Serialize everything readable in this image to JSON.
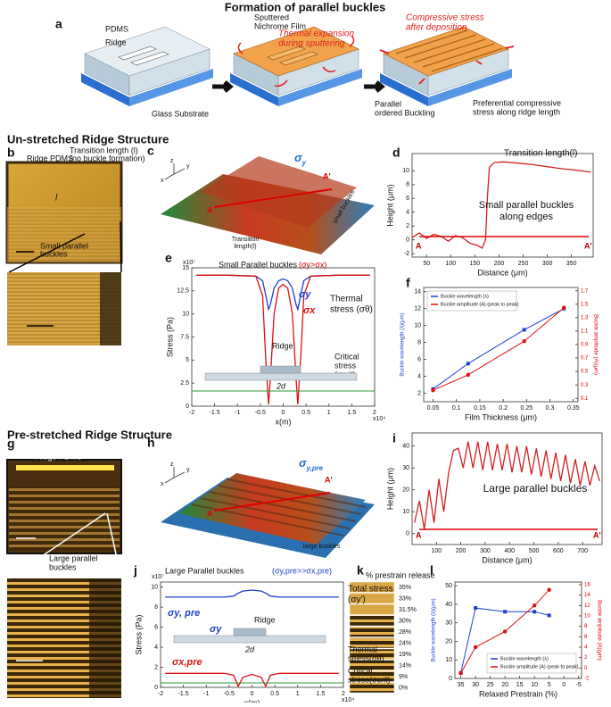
{
  "title": "Formation of parallel buckles",
  "panel_labels": [
    "a",
    "b",
    "c",
    "d",
    "e",
    "f",
    "g",
    "h",
    "i",
    "j",
    "k",
    "l"
  ],
  "sections": [
    "Un-stretched Ridge Structure",
    "Pre-stretched Ridge Structure"
  ],
  "a": {
    "pdms": "PDMS",
    "ridge": "Ridge",
    "glass": "Glass Substrate",
    "film": [
      "Sputtered",
      "Nichrome Film"
    ],
    "thermal": [
      "Thermal expansion",
      "during sputtering"
    ],
    "compressive": [
      "Compressive stress",
      "after deposition"
    ],
    "parallel": [
      "Parallel",
      "ordered Buckling"
    ],
    "preferential": [
      "Preferential compressive",
      "stress along ridge length"
    ]
  },
  "b": {
    "ridge": "Ridge PDMS",
    "transition": [
      "Transition length (l)",
      "(no buckle formation)"
    ],
    "l": "l",
    "small": [
      "Small parallel",
      "buckles"
    ]
  },
  "c": {
    "sigma": {
      "base": "σ",
      "sub": "y"
    },
    "a": "A",
    "a_prime": "A'",
    "transition": [
      "Transition",
      "length(l)"
    ],
    "small": "small buckles",
    "axes": [
      "z",
      "y",
      "x"
    ]
  },
  "g": {
    "ridge": "Ridge PDMS",
    "large": [
      "Large parallel",
      "buckles"
    ]
  },
  "h": {
    "sigma": {
      "base": "σ",
      "sub": "y,pre"
    },
    "a": "A",
    "a_prime": "A'",
    "large": "large buckles",
    "axes": [
      "z",
      "y",
      "x"
    ]
  },
  "k": {
    "title": "% prestrain release",
    "labels": [
      "35%",
      "33%",
      "31.5%",
      "30%",
      "28%",
      "24%",
      "19%",
      "14%",
      "9%",
      "0%"
    ]
  },
  "chart_data": [
    {
      "type": "line",
      "x_label": "Distance (μm)",
      "y_label": "Height (μm)",
      "x": [
        20,
        35,
        50,
        65,
        80,
        95,
        110,
        125,
        140,
        155,
        165,
        172,
        176,
        180,
        190,
        210,
        240,
        270,
        300,
        330,
        360,
        390
      ],
      "series": [
        {
          "name": "Height",
          "color": "#d42020",
          "values": [
            0.3,
            1.0,
            0.2,
            0.8,
            0.5,
            -0.2,
            0.6,
            0.3,
            -0.5,
            -0.8,
            -1.2,
            0,
            6,
            10.5,
            11.2,
            11.3,
            11.1,
            10.9,
            10.6,
            10.3,
            10.1,
            9.8
          ]
        }
      ],
      "xlim": [
        20,
        395
      ],
      "xticks": [
        50,
        100,
        150,
        200,
        250,
        300,
        350
      ],
      "ylim": [
        -2.5,
        12.5
      ],
      "yticks": [
        -2,
        0,
        2,
        4,
        6,
        8,
        10
      ],
      "annotations": {
        "transition": "Transition length(l)",
        "edges": [
          "Small parallel buckles",
          "along edges"
        ],
        "a": "A",
        "a_prime": "A'"
      }
    },
    {
      "type": "line",
      "y_label": "Stress (Pa)",
      "x_label": "x(m)",
      "y_multiplier": "x10⁷",
      "x_multiplier": "x10⁴",
      "x": [
        -1.9,
        -1.2,
        -0.6,
        -0.45,
        -0.38,
        -0.32,
        -0.28,
        -0.2,
        -0.1,
        0,
        0.1,
        0.2,
        0.28,
        0.32,
        0.38,
        0.45,
        0.6,
        1.2,
        1.9
      ],
      "series": [
        {
          "name": "σy",
          "color": "#1f3fd0",
          "values": [
            14.2,
            14.2,
            14.1,
            13.6,
            12,
            10.5,
            11,
            12.8,
            13.6,
            13.8,
            13.6,
            12.8,
            11,
            10.5,
            12,
            13.6,
            14.1,
            14.2,
            14.2
          ]
        },
        {
          "name": "σx",
          "color": "#e01010",
          "values": [
            14.2,
            14.2,
            14.1,
            12,
            5,
            0.2,
            3,
            10,
            12.8,
            13.2,
            12.8,
            10,
            3,
            0.2,
            5,
            12,
            14.1,
            14.2,
            14.2
          ]
        }
      ],
      "xlim": [
        -2,
        2
      ],
      "xticks": [
        -2,
        -1.5,
        -1,
        -0.5,
        0,
        0.5,
        1,
        1.5,
        2
      ],
      "ylim": [
        0,
        15
      ],
      "yticks": [
        0,
        2.5,
        5,
        7.5,
        10,
        12.5,
        15
      ],
      "annotations": {
        "heading": "Small Parallel buckles",
        "condition": "(σy>σx)",
        "thermal": [
          "Thermal",
          "stress (σθ)"
        ],
        "ridge": "Ridge",
        "two_d": "2d",
        "critical": [
          "Critical",
          "stress",
          "(σcrit)"
        ]
      }
    },
    {
      "type": "line",
      "x_label": "Film Thickness (μm)",
      "y_label": "Buckle wavelength (λ)(μm)",
      "y2_label": "Buckle amplitude (A)(μm)",
      "x": [
        0.05,
        0.125,
        0.245,
        0.33
      ],
      "series": [
        {
          "name": "Buckle wavelength (λ)",
          "color": "#1f3fd0",
          "values": [
            2.5,
            5.5,
            9.5,
            12
          ]
        },
        {
          "name": "Buckle amplitude (A) (peak to peak)",
          "color": "#e01010",
          "axis": "y2",
          "values": [
            0.22,
            0.45,
            0.95,
            1.45
          ]
        }
      ],
      "xlim": [
        0.03,
        0.36
      ],
      "xticks": [
        0.05,
        0.1,
        0.15,
        0.2,
        0.25,
        0.3,
        0.35
      ],
      "ylim": [
        1,
        14.5
      ],
      "yticks": [
        2,
        4,
        6,
        8,
        10,
        12,
        14
      ],
      "y2lim": [
        0.05,
        1.75
      ],
      "y2ticks": [
        0.1,
        0.3,
        0.5,
        0.7,
        0.9,
        1.1,
        1.3,
        1.5,
        1.7
      ],
      "legend": "top-left"
    },
    {
      "type": "line",
      "x_label": "Distance (μm)",
      "y_label": "Height (μm)",
      "x": [
        10,
        30,
        50,
        70,
        90,
        110,
        130,
        150,
        170,
        190,
        210,
        230,
        250,
        270,
        290,
        310,
        330,
        350,
        370,
        390,
        410,
        430,
        450,
        470,
        490,
        510,
        530,
        550,
        570,
        590,
        610,
        630,
        650,
        670,
        690,
        710,
        730,
        750,
        770
      ],
      "series": [
        {
          "name": "Height",
          "color": "#d42020",
          "values": [
            5,
            15,
            2,
            20,
            5,
            25,
            10,
            28,
            38,
            39,
            30,
            42,
            30,
            42,
            29,
            42,
            29,
            41,
            29,
            41,
            28,
            40,
            28,
            40,
            27,
            39,
            26,
            38,
            25,
            37,
            24,
            36,
            23,
            34,
            22,
            33,
            22,
            31,
            24
          ]
        }
      ],
      "xlim": [
        0,
        780
      ],
      "xticks": [
        100,
        200,
        300,
        400,
        500,
        600,
        700
      ],
      "ylim": [
        -5,
        46
      ],
      "yticks": [
        0,
        10,
        20,
        30,
        40
      ],
      "annotations": {
        "large": "Large parallel buckles",
        "a": "A",
        "a_prime": "A'"
      }
    },
    {
      "type": "line",
      "y_label": "Stress (Pa)",
      "x_label": "x(m)",
      "y_multiplier": "x10⁷",
      "x_multiplier": "x10⁴",
      "x": [
        -1.9,
        -1.2,
        -0.6,
        -0.4,
        -0.3,
        -0.2,
        0,
        0.2,
        0.3,
        0.4,
        0.6,
        1.2,
        1.9
      ],
      "series": [
        {
          "name": "σy, pre",
          "color": "#1f3fd0",
          "values": [
            9,
            9,
            9,
            9.1,
            9.4,
            9.6,
            9.7,
            9.6,
            9.4,
            9.1,
            9,
            9,
            9
          ]
        },
        {
          "name": "σx,pre",
          "color": "#e01010",
          "values": [
            1.4,
            1.4,
            1.4,
            1.2,
            0.1,
            1.0,
            1.3,
            1.0,
            0.1,
            1.2,
            1.4,
            1.4,
            1.4
          ]
        }
      ],
      "xlim": [
        -2,
        2
      ],
      "xticks": [
        -2,
        -1.5,
        -1,
        -0.5,
        0,
        0.5,
        1,
        1.5,
        2
      ],
      "ylim": [
        0,
        10.5
      ],
      "yticks": [
        0,
        2,
        4,
        6,
        8,
        10
      ],
      "annotations": {
        "heading": "Large Parallel buckles",
        "condition": "(σy,pre>>σx,pre)",
        "total": [
          "Total stress",
          "(σy')"
        ],
        "ridge": "Ridge",
        "two_d": "2d",
        "thermal": [
          "Thermal",
          "stress(σθ)"
        ],
        "critical": [
          "Critical",
          "stress(σcrit)"
        ],
        "sigma_y": "σy"
      }
    },
    {
      "type": "scatter",
      "x_label": "Relaxed Prestrain (%)",
      "y_label": "Buckle wavelength (λ)(μm)",
      "y2_label": "Buckle amplitude (A)(μm)",
      "x": [
        35,
        30,
        20,
        10,
        5
      ],
      "series": [
        {
          "name": "Buckle wavelength (λ)",
          "color": "#1f3fd0",
          "values": [
            3,
            38,
            36,
            36,
            34
          ]
        },
        {
          "name": "Buckle amplitude (A) (peak to peak)",
          "color": "#e01010",
          "axis": "y2",
          "values": [
            -1,
            4,
            7,
            12,
            15
          ]
        }
      ],
      "xlim": [
        37,
        -6
      ],
      "xticks": [
        35,
        30,
        25,
        20,
        15,
        10,
        5,
        0,
        -5
      ],
      "ylim": [
        0,
        52
      ],
      "yticks": [
        0,
        10,
        20,
        30,
        40,
        50
      ],
      "y2lim": [
        -2,
        16.5
      ],
      "y2ticks": [
        -2,
        0,
        2,
        4,
        6,
        8,
        10,
        12,
        14,
        16
      ],
      "legend": "bottom-right"
    }
  ]
}
